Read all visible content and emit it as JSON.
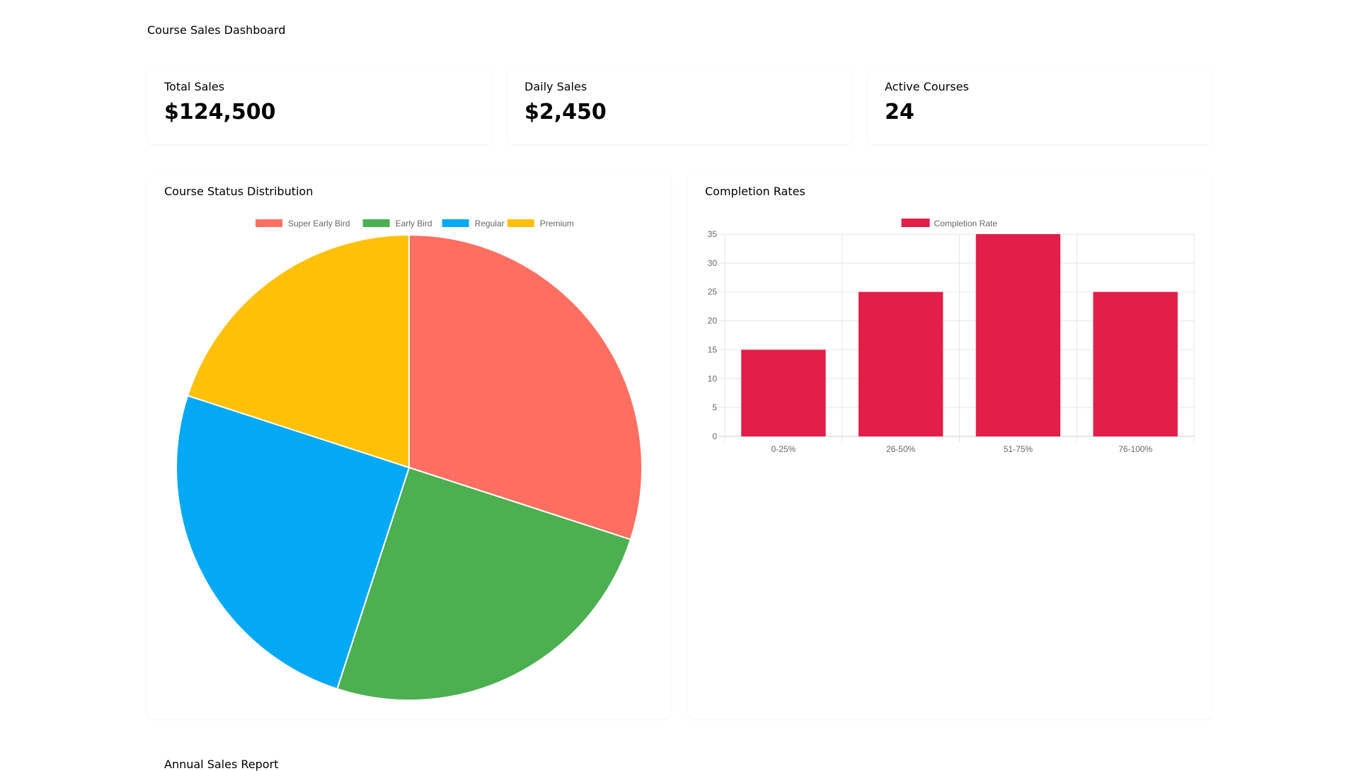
{
  "header": {
    "title": "Course Sales Dashboard"
  },
  "stats": [
    {
      "label": "Total Sales",
      "value": "$124,500"
    },
    {
      "label": "Daily Sales",
      "value": "$2,450"
    },
    {
      "label": "Active Courses",
      "value": "24"
    }
  ],
  "bottom_section": {
    "title": "Annual Sales Report"
  },
  "chart_data": [
    {
      "type": "pie",
      "title": "Course Status Distribution",
      "legend_position": "top",
      "categories": [
        "Super Early Bird",
        "Early Bird",
        "Regular",
        "Premium"
      ],
      "values": [
        30,
        25,
        25,
        20
      ],
      "colors": [
        "#ff6f61",
        "#4caf50",
        "#03a9f4",
        "#ffc107"
      ]
    },
    {
      "type": "bar",
      "title": "Completion Rates",
      "legend_position": "top",
      "categories": [
        "0-25%",
        "26-50%",
        "51-75%",
        "76-100%"
      ],
      "series": [
        {
          "name": "Completion Rate",
          "values": [
            15,
            25,
            35,
            25
          ],
          "color": "#e31e48"
        }
      ],
      "ylim": [
        0,
        35
      ],
      "yticks": [
        0,
        5,
        10,
        15,
        20,
        25,
        30,
        35
      ],
      "grid": true
    }
  ]
}
